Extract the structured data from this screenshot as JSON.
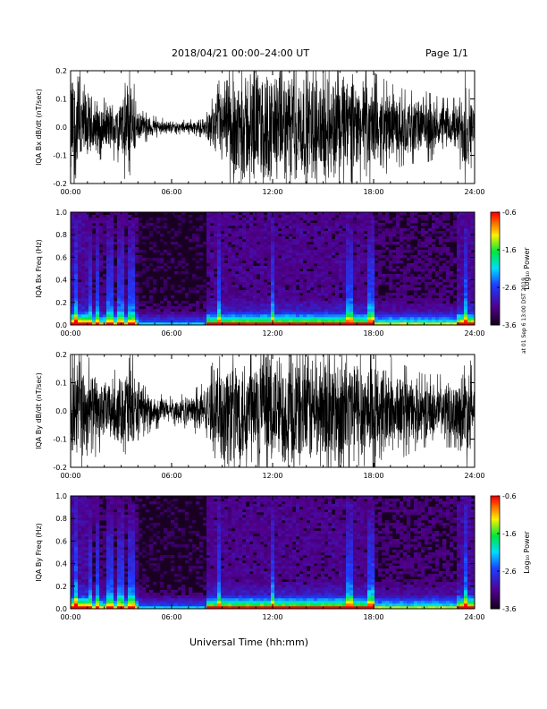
{
  "header": {
    "title": "2018/04/21   00:00–24:00 UT",
    "page": "Page 1/1"
  },
  "footer": {
    "xlabel": "Universal Time (hh:mm)",
    "stamp": "at 01 Sep 6 13:00 DST 2019"
  },
  "chart_data": [
    {
      "type": "line",
      "name": "bx-waveform",
      "ylabel": "IQA Bx dB/dt (nT/sec)",
      "x_ticks": [
        "00:00",
        "06:00",
        "12:00",
        "18:00",
        "24:00"
      ],
      "xlim": [
        0,
        24
      ],
      "ylim": [
        -0.2,
        0.2
      ],
      "y_ticks": [
        "-0.2",
        "-0.1",
        "0.0",
        "0.1",
        "0.2"
      ],
      "envelope_hours": [
        0,
        0.5,
        1,
        2,
        3,
        3.5,
        4,
        5,
        6,
        7,
        8,
        9,
        10,
        11,
        12,
        13,
        14,
        15,
        16,
        17,
        18,
        19,
        20,
        21,
        22,
        23,
        23.5,
        24
      ],
      "envelope_amp": [
        0.2,
        0.2,
        0.12,
        0.08,
        0.1,
        0.2,
        0.05,
        0.03,
        0.02,
        0.02,
        0.03,
        0.15,
        0.2,
        0.2,
        0.2,
        0.2,
        0.2,
        0.18,
        0.2,
        0.18,
        0.15,
        0.12,
        0.1,
        0.1,
        0.08,
        0.08,
        0.2,
        0.05
      ]
    },
    {
      "type": "heatmap",
      "name": "bx-spectrogram",
      "ylabel": "IQA Bx Freq (Hz)",
      "x_ticks": [
        "00:00",
        "06:00",
        "12:00",
        "18:00",
        "24:00"
      ],
      "xlim": [
        0,
        24
      ],
      "ylim": [
        0,
        1.0
      ],
      "y_ticks": [
        "0.0",
        "0.2",
        "0.4",
        "0.6",
        "0.8",
        "1.0"
      ],
      "colorbar": {
        "label": "Log₁₀ Power",
        "range": [
          -3.6,
          -0.6
        ],
        "ticks": [
          "-0.6",
          "-1.6",
          "-2.6",
          "-3.6"
        ]
      }
    },
    {
      "type": "line",
      "name": "by-waveform",
      "ylabel": "IQA By dB/dt (nT/sec)",
      "x_ticks": [
        "00:00",
        "06:00",
        "12:00",
        "18:00",
        "24:00"
      ],
      "xlim": [
        0,
        24
      ],
      "ylim": [
        -0.2,
        0.2
      ],
      "y_ticks": [
        "-0.2",
        "-0.1",
        "0.0",
        "0.1",
        "0.2"
      ],
      "envelope_hours": [
        0,
        0.5,
        1,
        2,
        3,
        3.5,
        4,
        5,
        6,
        7,
        8,
        9,
        10,
        11,
        12,
        13,
        14,
        15,
        16,
        17,
        18,
        19,
        20,
        21,
        22,
        23,
        23.5,
        24
      ],
      "envelope_amp": [
        0.2,
        0.2,
        0.15,
        0.1,
        0.12,
        0.2,
        0.08,
        0.05,
        0.04,
        0.05,
        0.08,
        0.2,
        0.2,
        0.2,
        0.2,
        0.2,
        0.2,
        0.2,
        0.2,
        0.2,
        0.18,
        0.15,
        0.12,
        0.1,
        0.1,
        0.1,
        0.2,
        0.08
      ]
    },
    {
      "type": "heatmap",
      "name": "by-spectrogram",
      "ylabel": "IQA By Freq (Hz)",
      "x_ticks": [
        "00:00",
        "06:00",
        "12:00",
        "18:00",
        "24:00"
      ],
      "xlim": [
        0,
        24
      ],
      "ylim": [
        0,
        1.0
      ],
      "y_ticks": [
        "0.0",
        "0.2",
        "0.4",
        "0.6",
        "0.8",
        "1.0"
      ],
      "colorbar": {
        "label": "Log₁₀ Power",
        "range": [
          -3.6,
          -0.6
        ],
        "ticks": [
          "-0.6",
          "-1.6",
          "-2.6",
          "-3.6"
        ]
      }
    }
  ]
}
